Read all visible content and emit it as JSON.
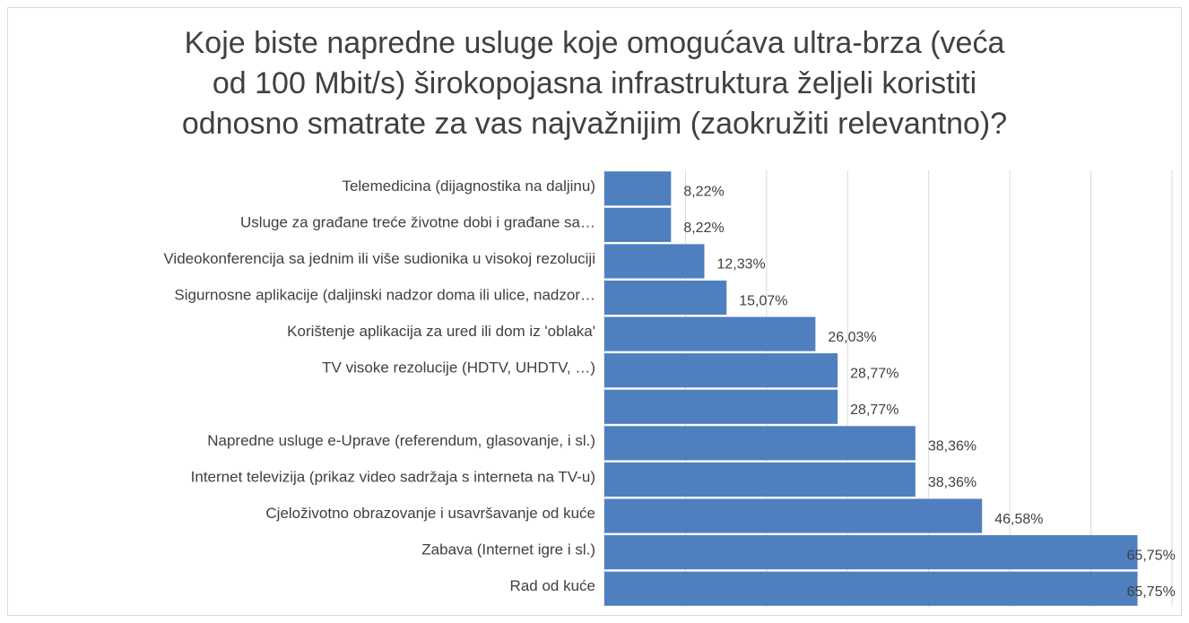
{
  "chart_data": {
    "type": "bar",
    "orientation": "horizontal",
    "title": [
      "Koje biste napredne usluge koje omogućava ultra-brza (veća",
      "od 100 Mbit/s) širokopojasna infrastruktura željeli koristiti",
      "odnosno smatrate za vas najvažnijim (zaokružiti relevantno)?"
    ],
    "categories": [
      "Telemedicina (dijagnostika na daljinu)",
      "Usluge za građane treće životne dobi i građane sa…",
      "Videokonferencija sa jednim ili više sudionika u visokoj rezoluciji",
      "Sigurnosne aplikacije (daljinski nadzor doma ili ulice, nadzor…",
      "Korištenje aplikacija za ured ili dom iz 'oblaka'",
      "TV visoke rezolucije (HDTV, UHDTV, …)",
      null,
      "Napredne usluge e-Uprave (referendum, glasovanje, i sl.)",
      "Internet televizija (prikaz video sadržaja s interneta na TV-u)",
      "Cjeloživotno obrazovanje i usavršavanje od kuće",
      "Zabava (Internet igre i sl.)",
      "Rad od kuće"
    ],
    "values": [
      8.22,
      8.22,
      12.33,
      15.07,
      26.03,
      28.77,
      28.77,
      38.36,
      38.36,
      46.58,
      65.75,
      65.75
    ],
    "value_labels": [
      "8,22%",
      "8,22%",
      "12,33%",
      "15,07%",
      "26,03%",
      "28,77%",
      "28,77%",
      "38,36%",
      "38,36%",
      "46,58%",
      "65,75%",
      "65,75%"
    ],
    "color": "#4f7fbf",
    "xlim": [
      0,
      70
    ],
    "xticks": [
      0,
      10,
      20,
      30,
      40,
      50,
      60,
      70
    ],
    "grid": true
  }
}
